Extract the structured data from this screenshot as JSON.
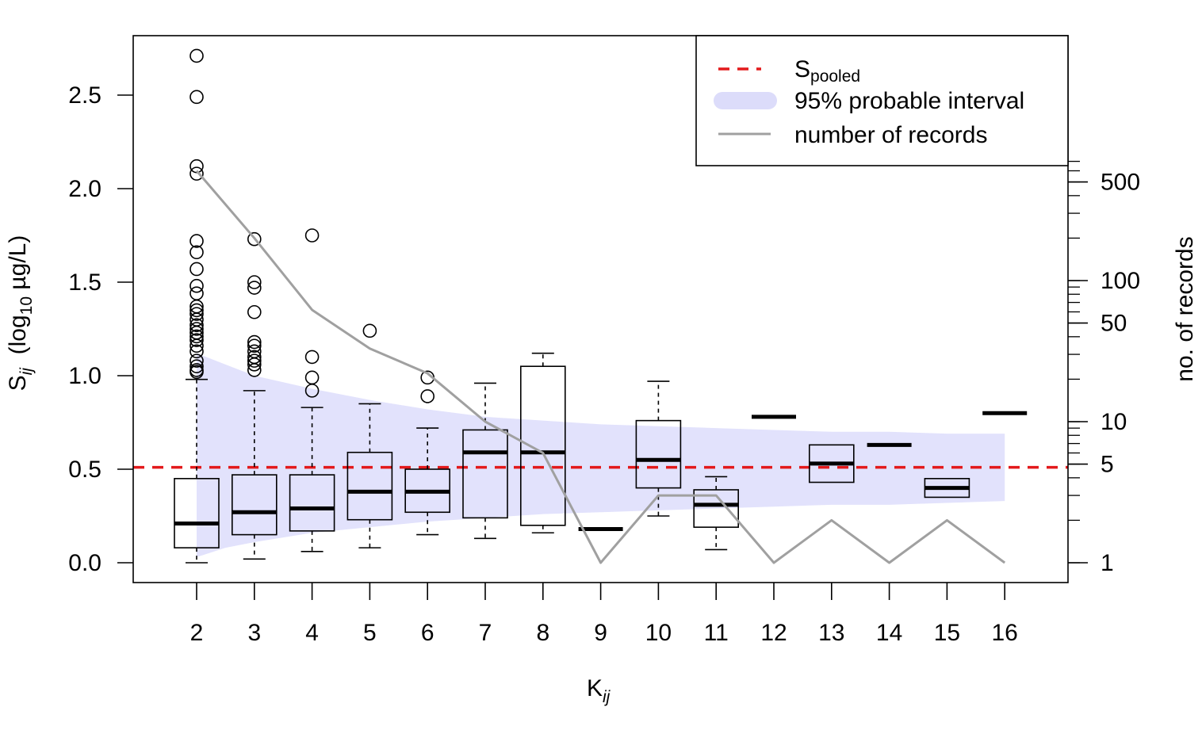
{
  "chart_data": {
    "type": "box",
    "xlabel": "K",
    "xlabel_sub": "ij",
    "ylabel": "S",
    "ylabel_sub": "ij",
    "ylabel_unit_pre": "(log",
    "ylabel_unit_sub": "10",
    "ylabel_unit_post": " µg/L)",
    "y2label": "no. of records",
    "ylim": [
      0,
      2.75
    ],
    "y_ticks": [
      "0.0",
      "0.5",
      "1.0",
      "1.5",
      "2.0",
      "2.5"
    ],
    "y2_scale": "log",
    "y2_ticks": [
      "1",
      "5",
      "10",
      "50",
      "100",
      "500"
    ],
    "categories": [
      "2",
      "3",
      "4",
      "5",
      "6",
      "7",
      "8",
      "9",
      "10",
      "11",
      "12",
      "13",
      "14",
      "15",
      "16"
    ],
    "boxes": [
      {
        "k": 2,
        "whisker_low": 0.0,
        "q1": 0.08,
        "median": 0.21,
        "q3": 0.45,
        "whisker_high": 0.98,
        "outliers": [
          2.71,
          2.49,
          2.12,
          2.08,
          1.72,
          1.66,
          1.57,
          1.48,
          1.44,
          1.37,
          1.35,
          1.33,
          1.3,
          1.27,
          1.25,
          1.23,
          1.21,
          1.19,
          1.16,
          1.13,
          1.08,
          1.05,
          1.03,
          1.02
        ]
      },
      {
        "k": 3,
        "whisker_low": 0.02,
        "q1": 0.15,
        "median": 0.27,
        "q3": 0.47,
        "whisker_high": 0.92,
        "outliers": [
          1.73,
          1.5,
          1.47,
          1.34,
          1.18,
          1.16,
          1.13,
          1.1,
          1.08,
          1.06,
          1.03
        ]
      },
      {
        "k": 4,
        "whisker_low": 0.06,
        "q1": 0.17,
        "median": 0.29,
        "q3": 0.47,
        "whisker_high": 0.83,
        "outliers": [
          1.75,
          1.1,
          0.99,
          0.92
        ]
      },
      {
        "k": 5,
        "whisker_low": 0.08,
        "q1": 0.23,
        "median": 0.38,
        "q3": 0.59,
        "whisker_high": 0.85,
        "outliers": [
          1.24
        ]
      },
      {
        "k": 6,
        "whisker_low": 0.15,
        "q1": 0.27,
        "median": 0.38,
        "q3": 0.5,
        "whisker_high": 0.72,
        "outliers": [
          0.99,
          0.89
        ]
      },
      {
        "k": 7,
        "whisker_low": 0.13,
        "q1": 0.24,
        "median": 0.59,
        "q3": 0.71,
        "whisker_high": 0.96,
        "outliers": []
      },
      {
        "k": 8,
        "whisker_low": 0.16,
        "q1": 0.2,
        "median": 0.59,
        "q3": 1.05,
        "whisker_high": 1.12,
        "outliers": []
      },
      {
        "k": 9,
        "whisker_low": 0.18,
        "q1": 0.18,
        "median": 0.18,
        "q3": 0.18,
        "whisker_high": 0.18,
        "outliers": []
      },
      {
        "k": 10,
        "whisker_low": 0.25,
        "q1": 0.4,
        "median": 0.55,
        "q3": 0.76,
        "whisker_high": 0.97,
        "outliers": []
      },
      {
        "k": 11,
        "whisker_low": 0.07,
        "q1": 0.19,
        "median": 0.31,
        "q3": 0.39,
        "whisker_high": 0.46,
        "outliers": []
      },
      {
        "k": 12,
        "whisker_low": 0.78,
        "q1": 0.78,
        "median": 0.78,
        "q3": 0.78,
        "whisker_high": 0.78,
        "outliers": []
      },
      {
        "k": 13,
        "whisker_low": 0.43,
        "q1": 0.43,
        "median": 0.53,
        "q3": 0.63,
        "whisker_high": 0.63,
        "outliers": []
      },
      {
        "k": 14,
        "whisker_low": 0.63,
        "q1": 0.63,
        "median": 0.63,
        "q3": 0.63,
        "whisker_high": 0.63,
        "outliers": []
      },
      {
        "k": 15,
        "whisker_low": 0.35,
        "q1": 0.35,
        "median": 0.4,
        "q3": 0.45,
        "whisker_high": 0.45,
        "outliers": []
      },
      {
        "k": 16,
        "whisker_low": 0.8,
        "q1": 0.8,
        "median": 0.8,
        "q3": 0.8,
        "whisker_high": 0.8,
        "outliers": []
      }
    ],
    "s_pooled": 0.51,
    "interval_95": {
      "k": [
        2,
        2.5,
        3,
        4,
        5,
        6,
        7,
        8,
        9,
        10,
        11,
        12,
        13,
        14,
        15,
        16
      ],
      "upper": [
        1.12,
        1.06,
        1.0,
        0.93,
        0.87,
        0.82,
        0.78,
        0.76,
        0.74,
        0.73,
        0.72,
        0.71,
        0.7,
        0.7,
        0.69,
        0.69
      ],
      "lower": [
        0.03,
        0.08,
        0.11,
        0.16,
        0.19,
        0.22,
        0.24,
        0.26,
        0.27,
        0.28,
        0.29,
        0.3,
        0.31,
        0.31,
        0.32,
        0.33
      ]
    },
    "records": {
      "k": [
        2,
        3,
        4,
        5,
        6,
        7,
        8,
        9,
        10,
        11,
        12,
        13,
        14,
        15,
        16
      ],
      "count": [
        600,
        200,
        62,
        33,
        22,
        10,
        6,
        1,
        3,
        3,
        1,
        2,
        1,
        2,
        1
      ]
    },
    "legend": {
      "placement": "top-right",
      "items": [
        {
          "label": "S",
          "sub": "pooled",
          "style": "dashed",
          "color": "#e31a1c"
        },
        {
          "label": "95% probable interval",
          "style": "band",
          "color": "#c8c8f7"
        },
        {
          "label": "number of records",
          "style": "line",
          "color": "#a0a0a0"
        }
      ]
    },
    "colors": {
      "pooled": "#e31a1c",
      "band": "#e2e2fc",
      "records": "#a0a0a0",
      "box": "#000000"
    }
  }
}
